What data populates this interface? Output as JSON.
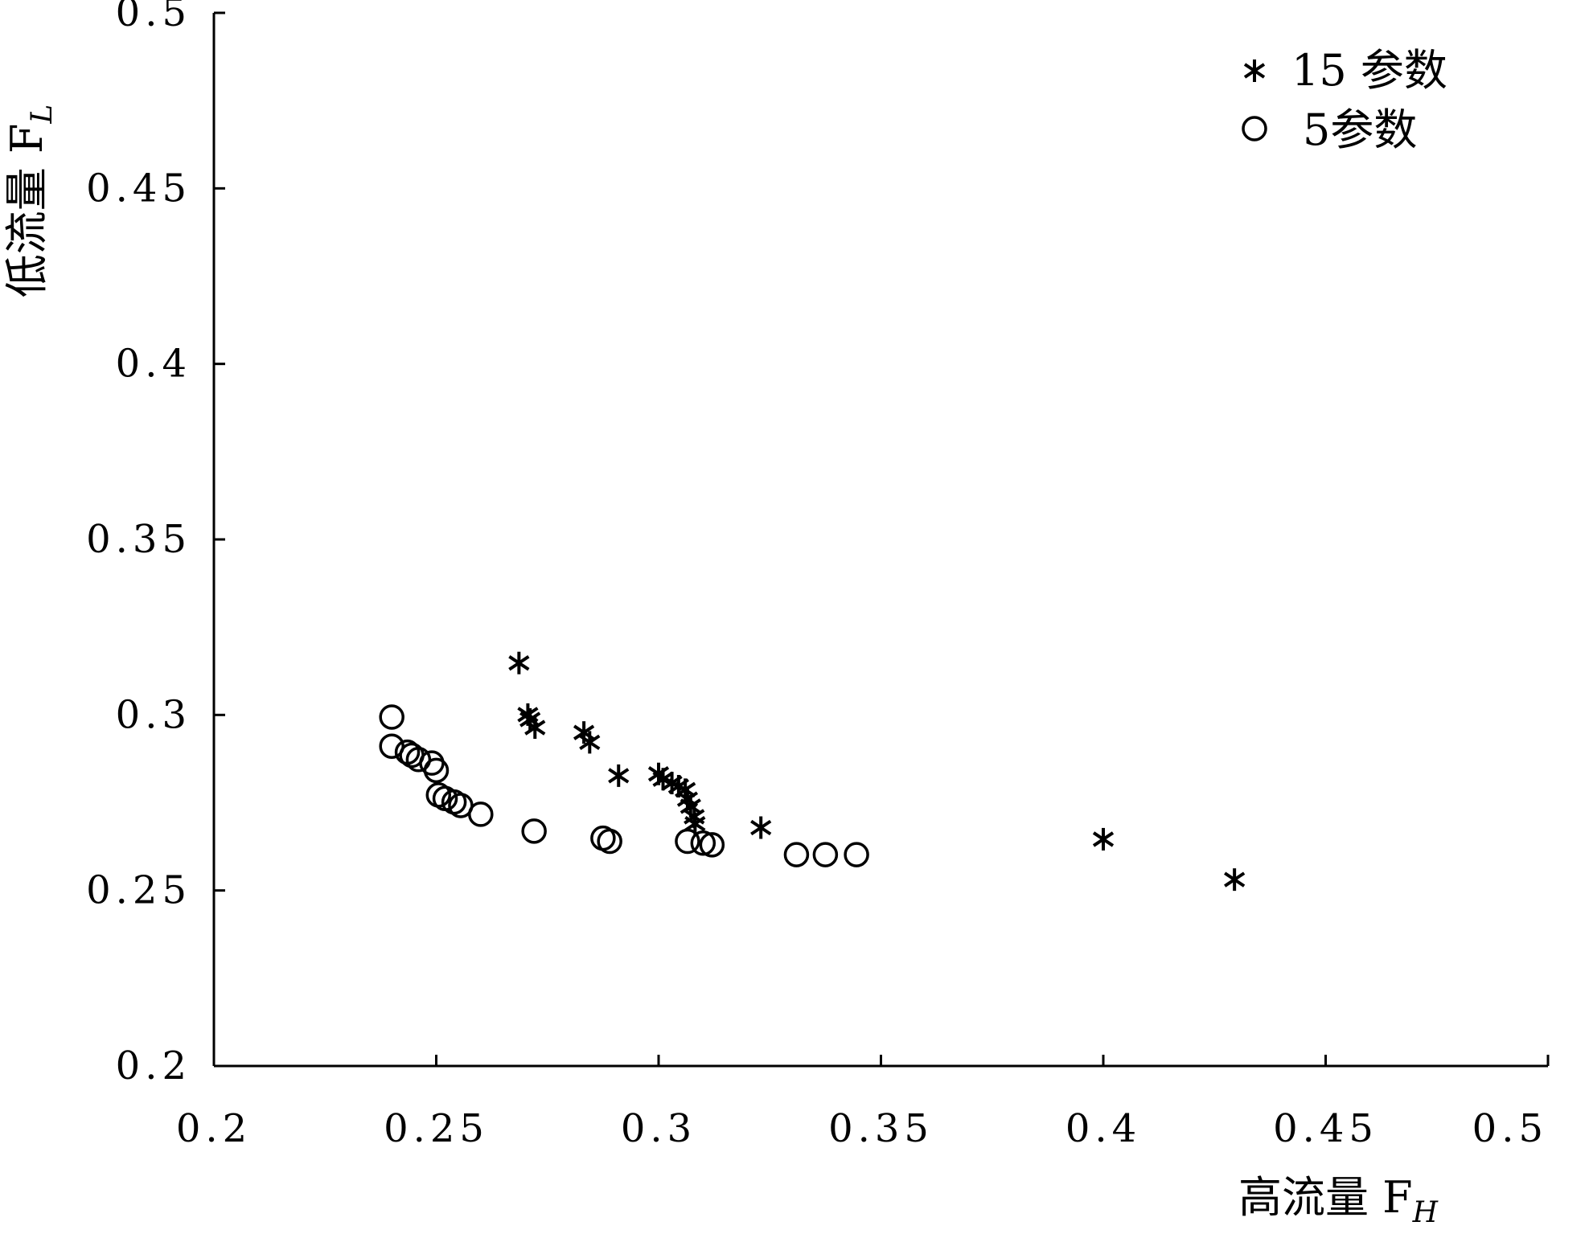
{
  "chart_data": {
    "type": "scatter",
    "xlabel": "高流量 F",
    "xlabel_sub": "H",
    "ylabel": "低流量 F",
    "ylabel_sub": "L",
    "xlim": [
      0.2,
      0.5
    ],
    "ylim": [
      0.2,
      0.5
    ],
    "x_ticks": [
      0.2,
      0.25,
      0.3,
      0.35,
      0.4,
      0.45,
      0.5
    ],
    "x_tick_labels": [
      "0.2",
      "0.25",
      "0.3",
      "0.35",
      "0.4",
      "0.45",
      "0.5"
    ],
    "y_ticks": [
      0.2,
      0.25,
      0.3,
      0.35,
      0.4,
      0.45,
      0.5
    ],
    "y_tick_labels": [
      "0.2",
      "0.25",
      "0.3",
      "0.35",
      "0.4",
      "0.45",
      "0.5"
    ],
    "grid": false,
    "legend_position": "top-right",
    "series": [
      {
        "name": "15 参数",
        "marker": "asterisk",
        "points": [
          [
            0.2686,
            0.3148
          ],
          [
            0.2706,
            0.3001
          ],
          [
            0.2711,
            0.2987
          ],
          [
            0.2722,
            0.2964
          ],
          [
            0.2832,
            0.295
          ],
          [
            0.2845,
            0.2922
          ],
          [
            0.291,
            0.2827
          ],
          [
            0.3,
            0.2832
          ],
          [
            0.301,
            0.2817
          ],
          [
            0.303,
            0.2806
          ],
          [
            0.3045,
            0.2797
          ],
          [
            0.306,
            0.2787
          ],
          [
            0.3065,
            0.276
          ],
          [
            0.3072,
            0.274
          ],
          [
            0.308,
            0.271
          ],
          [
            0.3082,
            0.269
          ],
          [
            0.323,
            0.2679
          ],
          [
            0.4,
            0.2646
          ],
          [
            0.4295,
            0.2531
          ]
        ]
      },
      {
        "name": "5参数",
        "marker": "circle",
        "points": [
          [
            0.24,
            0.2994
          ],
          [
            0.24,
            0.2911
          ],
          [
            0.2435,
            0.2894
          ],
          [
            0.2445,
            0.2885
          ],
          [
            0.246,
            0.2873
          ],
          [
            0.249,
            0.2863
          ],
          [
            0.25,
            0.2842
          ],
          [
            0.2505,
            0.2772
          ],
          [
            0.252,
            0.2762
          ],
          [
            0.254,
            0.2752
          ],
          [
            0.2555,
            0.2742
          ],
          [
            0.26,
            0.2717
          ],
          [
            0.272,
            0.2669
          ],
          [
            0.2875,
            0.2649
          ],
          [
            0.289,
            0.264
          ],
          [
            0.3065,
            0.264
          ],
          [
            0.31,
            0.2635
          ],
          [
            0.312,
            0.263
          ],
          [
            0.331,
            0.2602
          ],
          [
            0.3375,
            0.2602
          ],
          [
            0.3445,
            0.2602
          ]
        ]
      }
    ]
  },
  "legend": {
    "items": [
      {
        "label": "15 参数",
        "marker": "asterisk"
      },
      {
        "label": "5参数",
        "marker": "circle"
      }
    ]
  }
}
